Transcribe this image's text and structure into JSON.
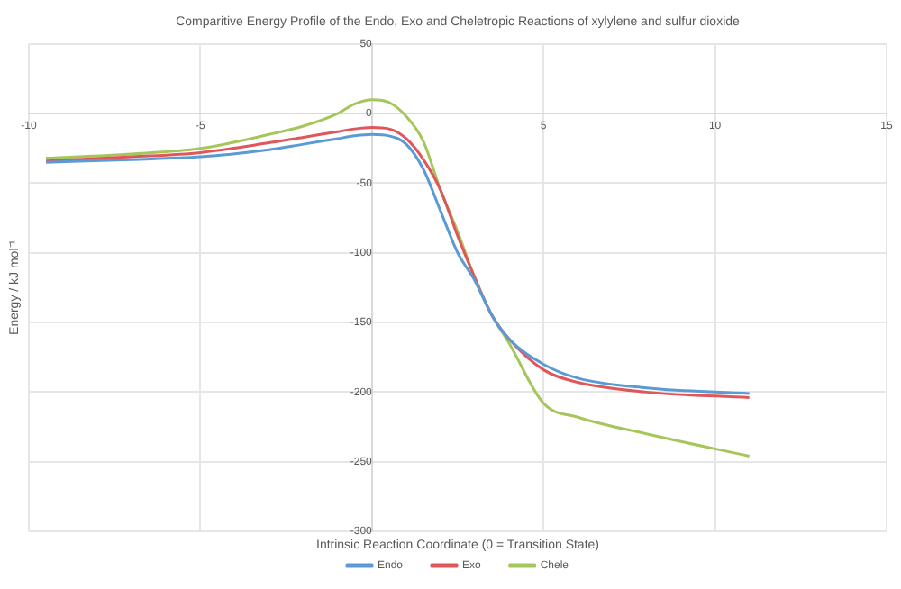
{
  "chart_data": {
    "type": "line",
    "title": "Comparitive Energy Profile of the Endo, Exo and Cheletropic Reactions of xylylene and sulfur dioxide",
    "xlabel": "Intrinsic Reaction Coordinate (0 = Transition State)",
    "ylabel": "Energy / kJ mol⁻¹",
    "xlim": [
      -10,
      15
    ],
    "xticks": [
      -10,
      -5,
      5,
      10,
      15
    ],
    "ylim": [
      -300,
      50
    ],
    "yticks": [
      -300,
      -250,
      -200,
      -150,
      -100,
      -50,
      0,
      50
    ],
    "grid": true,
    "legend": "bottom",
    "marker": "none",
    "line_style": "solid",
    "series": [
      {
        "name": "Endo",
        "color": "#5b9bd5",
        "x": [
          -9.5,
          -7,
          -5,
          -3,
          -2,
          -1,
          -0.5,
          0,
          0.5,
          1,
          1.5,
          2,
          2.5,
          3,
          3.5,
          4,
          5,
          6,
          8,
          11
        ],
        "values": [
          -35,
          -33,
          -31,
          -26,
          -22,
          -18,
          -16,
          -15,
          -16,
          -22,
          -40,
          -70,
          -100,
          -120,
          -145,
          -162,
          -180,
          -190,
          -197,
          -201
        ]
      },
      {
        "name": "Exo",
        "color": "#e0575b",
        "x": [
          -9.5,
          -7,
          -5,
          -3,
          -2,
          -1,
          -0.5,
          0,
          0.5,
          1,
          1.5,
          2,
          2.5,
          3,
          3.5,
          4,
          5,
          6,
          8,
          11
        ],
        "values": [
          -34,
          -31,
          -28,
          -21,
          -17,
          -13,
          -11,
          -10,
          -11,
          -18,
          -33,
          -55,
          -88,
          -118,
          -145,
          -162,
          -184,
          -193,
          -200,
          -204
        ]
      },
      {
        "name": "Chele",
        "color": "#a5c65a",
        "x": [
          -9.5,
          -7,
          -5,
          -3,
          -2,
          -1,
          -0.5,
          0,
          0.5,
          1,
          1.5,
          2,
          2.5,
          3,
          3.5,
          4,
          5,
          6,
          8,
          11
        ],
        "values": [
          -32,
          -29,
          -25,
          -15,
          -9,
          0,
          7,
          10,
          8,
          -2,
          -20,
          -55,
          -85,
          -118,
          -145,
          -165,
          -208,
          -218,
          -230,
          -246
        ]
      }
    ]
  }
}
